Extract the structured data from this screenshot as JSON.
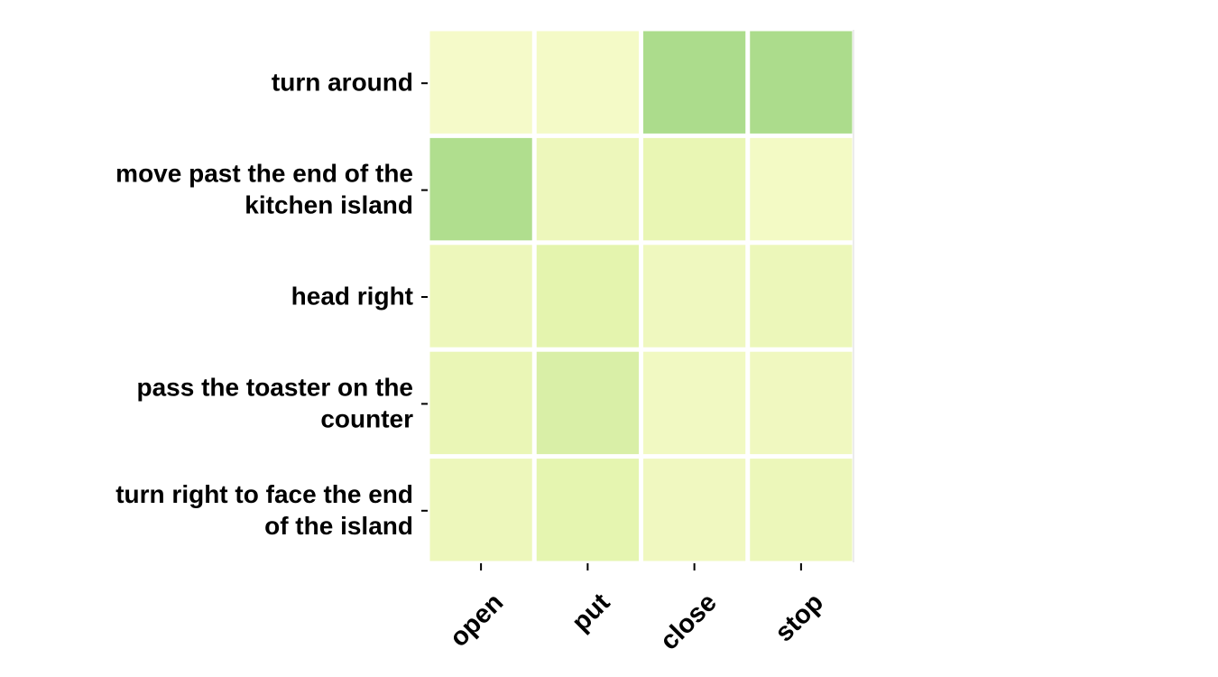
{
  "chart_data": {
    "type": "heatmap",
    "title": "",
    "xlabel": "",
    "ylabel": "",
    "x_categories": [
      "open",
      "put",
      "close",
      "stop"
    ],
    "y_categories": [
      [
        "turn around"
      ],
      [
        "move past the end of the",
        "kitchen island"
      ],
      [
        "head right"
      ],
      [
        "pass the toaster on the",
        "counter"
      ],
      [
        "turn right to face the end",
        "of the island"
      ]
    ],
    "values": [
      [
        0.02,
        0.03,
        0.48,
        0.48
      ],
      [
        0.46,
        0.1,
        0.14,
        0.04
      ],
      [
        0.1,
        0.18,
        0.08,
        0.11
      ],
      [
        0.13,
        0.24,
        0.06,
        0.07
      ],
      [
        0.1,
        0.17,
        0.07,
        0.11
      ]
    ],
    "value_range": [
      0,
      0.5
    ],
    "colorscale": [
      "#f7fbcc",
      "#e6f5b0",
      "#c9e79b",
      "#a8db8a"
    ],
    "grid_color": "#ffffff",
    "legend": "none"
  }
}
